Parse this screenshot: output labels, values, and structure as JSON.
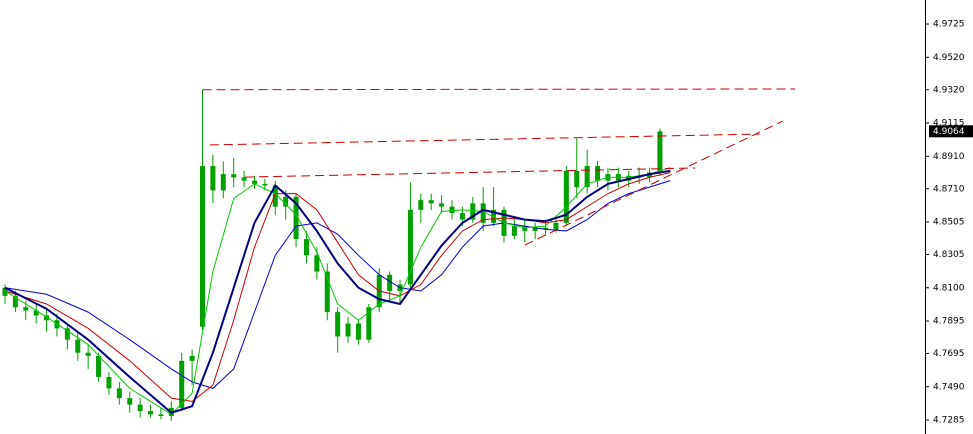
{
  "chart_data": {
    "type": "candlestick",
    "xlim": [
      -0.48,
      88.5
    ],
    "ylim": [
      4.7199,
      4.9873
    ],
    "yticks": [
      4.9725,
      {
        "value": 4.952,
        "label": "4.9520"
      },
      {
        "value": 4.932,
        "label": "4.9320"
      },
      4.9115,
      {
        "value": 4.891,
        "label": "4.8910"
      },
      {
        "value": 4.871,
        "label": "4.8710"
      },
      4.8505,
      4.8305,
      {
        "value": 4.81,
        "label": "4.8100"
      },
      4.7895,
      4.7695,
      {
        "value": 4.749,
        "label": "4.7490"
      },
      4.7285
    ],
    "current_price": 4.9064,
    "candle_color": "#00a000",
    "open": [
      4.81,
      4.805,
      4.798,
      4.796,
      4.793,
      4.79,
      4.785,
      4.778,
      4.77,
      4.768,
      4.755,
      4.748,
      4.742,
      4.738,
      4.734,
      4.732,
      4.731,
      4.736,
      4.765,
      4.786,
      4.885,
      4.87,
      4.88,
      4.878,
      4.876,
      4.874,
      4.873,
      4.86,
      4.866,
      4.84,
      4.83,
      4.82,
      4.795,
      4.78,
      4.788,
      4.778,
      4.798,
      4.818,
      4.808,
      4.812,
      4.858,
      4.864,
      4.862,
      4.86,
      4.856,
      4.852,
      4.862,
      4.85,
      4.858,
      4.842,
      4.848,
      4.845,
      4.847,
      4.846,
      4.85,
      4.882,
      4.872,
      4.885,
      4.876,
      4.88,
      4.876,
      4.879,
      4.878,
      4.881
    ],
    "high": [
      4.812,
      4.808,
      4.802,
      4.8,
      4.797,
      4.794,
      4.788,
      4.782,
      4.775,
      4.77,
      4.758,
      4.752,
      4.746,
      4.742,
      4.738,
      4.736,
      4.74,
      4.77,
      4.772,
      4.932,
      4.892,
      4.888,
      4.89,
      4.882,
      4.879,
      4.877,
      4.876,
      4.87,
      4.868,
      4.845,
      4.835,
      4.825,
      4.798,
      4.792,
      4.79,
      4.8,
      4.822,
      4.82,
      4.815,
      4.875,
      4.868,
      4.868,
      4.867,
      4.864,
      4.86,
      4.866,
      4.872,
      4.872,
      4.86,
      4.852,
      4.852,
      4.85,
      4.852,
      4.852,
      4.885,
      4.902,
      4.895,
      4.888,
      4.884,
      4.884,
      4.882,
      4.884,
      4.884,
      4.908
    ],
    "low": [
      4.8,
      4.795,
      4.79,
      4.788,
      4.783,
      4.78,
      4.772,
      4.765,
      4.76,
      4.752,
      4.744,
      4.738,
      4.733,
      4.73,
      4.73,
      4.729,
      4.728,
      4.734,
      4.75,
      4.784,
      4.862,
      4.865,
      4.872,
      4.872,
      4.871,
      4.87,
      4.855,
      4.852,
      4.835,
      4.825,
      4.815,
      4.79,
      4.77,
      4.776,
      4.775,
      4.776,
      4.795,
      4.802,
      4.8,
      4.81,
      4.85,
      4.858,
      4.856,
      4.852,
      4.848,
      4.85,
      4.845,
      4.848,
      4.838,
      4.84,
      4.838,
      4.84,
      4.842,
      4.844,
      4.848,
      4.865,
      4.868,
      4.872,
      4.87,
      4.872,
      4.872,
      4.874,
      4.875,
      4.879
    ],
    "close": [
      4.805,
      4.798,
      4.796,
      4.793,
      4.79,
      4.785,
      4.778,
      4.77,
      4.768,
      4.755,
      4.748,
      4.742,
      4.738,
      4.734,
      4.732,
      4.731,
      4.736,
      4.765,
      4.768,
      4.885,
      4.87,
      4.88,
      4.878,
      4.876,
      4.874,
      4.873,
      4.86,
      4.866,
      4.84,
      4.83,
      4.82,
      4.795,
      4.78,
      4.788,
      4.778,
      4.798,
      4.818,
      4.808,
      4.812,
      4.858,
      4.864,
      4.862,
      4.86,
      4.856,
      4.852,
      4.862,
      4.85,
      4.858,
      4.842,
      4.848,
      4.845,
      4.847,
      4.846,
      4.85,
      4.882,
      4.872,
      4.885,
      4.876,
      4.88,
      4.876,
      4.879,
      4.878,
      4.881,
      4.9064
    ],
    "ma_x": [
      0,
      4,
      8,
      12,
      16,
      18,
      20,
      22,
      24,
      26,
      28,
      30,
      32,
      34,
      36,
      38,
      40,
      42,
      44,
      46,
      48,
      50,
      52,
      54,
      56,
      58,
      60,
      62,
      64
    ],
    "series": [
      {
        "color": "#0000cc",
        "width": 1,
        "values": [
          4.81,
          4.806,
          4.795,
          4.778,
          4.76,
          4.752,
          4.748,
          4.76,
          4.795,
          4.83,
          4.848,
          4.85,
          4.843,
          4.83,
          4.818,
          4.81,
          4.808,
          4.818,
          4.835,
          4.848,
          4.85,
          4.848,
          4.846,
          4.845,
          4.852,
          4.862,
          4.868,
          4.872,
          4.876
        ]
      },
      {
        "color": "#cc0000",
        "width": 1,
        "values": [
          4.808,
          4.8,
          4.785,
          4.765,
          4.742,
          4.74,
          4.75,
          4.79,
          4.835,
          4.868,
          4.868,
          4.858,
          4.838,
          4.818,
          4.808,
          4.805,
          4.812,
          4.83,
          4.845,
          4.852,
          4.853,
          4.852,
          4.85,
          4.852,
          4.86,
          4.868,
          4.874,
          4.878,
          4.881
        ]
      },
      {
        "color": "#00cc00",
        "width": 1,
        "values": [
          4.808,
          4.792,
          4.775,
          4.748,
          4.732,
          4.745,
          4.82,
          4.865,
          4.874,
          4.868,
          4.855,
          4.832,
          4.8,
          4.79,
          4.8,
          4.805,
          4.835,
          4.857,
          4.858,
          4.857,
          4.85,
          4.847,
          4.848,
          4.86,
          4.874,
          4.878,
          4.878,
          4.88,
          4.884
        ]
      },
      {
        "color": "#000080",
        "width": 2,
        "values": [
          4.81,
          4.797,
          4.778,
          4.755,
          4.733,
          4.737,
          4.77,
          4.81,
          4.85,
          4.873,
          4.862,
          4.845,
          4.825,
          4.81,
          4.803,
          4.8,
          4.818,
          4.836,
          4.85,
          4.858,
          4.855,
          4.852,
          4.851,
          4.855,
          4.866,
          4.874,
          4.877,
          4.88,
          4.882
        ]
      }
    ],
    "trend_color": "#cc0000",
    "trend_lines": [
      {
        "x": [
          19,
          76
        ],
        "y": [
          4.932,
          4.9325
        ]
      },
      {
        "x": [
          19.7,
          72.6
        ],
        "y": [
          4.898,
          4.9047
        ]
      },
      {
        "x": [
          23.1,
          66.4
        ],
        "y": [
          4.8782,
          4.8838
        ]
      },
      {
        "x": [
          50,
          74.8
        ],
        "y": [
          4.8363,
          4.9127
        ]
      }
    ]
  }
}
